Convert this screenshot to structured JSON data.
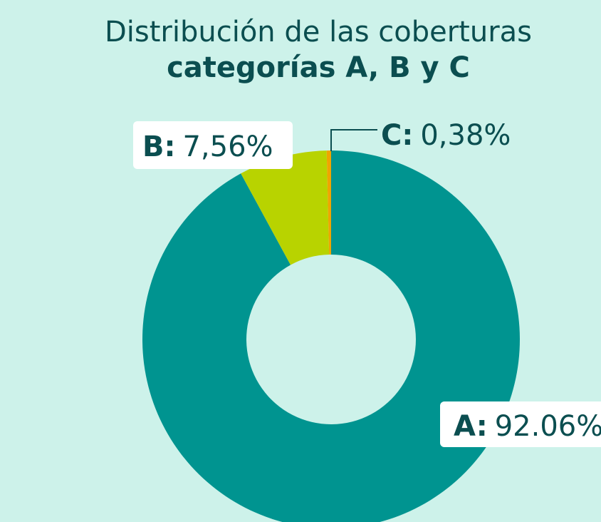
{
  "chart_data": {
    "type": "donut",
    "title": "Distribución de las coberturas",
    "subtitle": "categorías A, B y C",
    "categories": [
      "A:",
      "B:",
      "C:"
    ],
    "values": [
      92.06,
      7.56,
      0.38
    ],
    "value_labels": [
      "92.06%",
      "7,56%",
      "0,38%"
    ],
    "colors": [
      "#009490",
      "#b8d300",
      "#f0a500"
    ]
  }
}
